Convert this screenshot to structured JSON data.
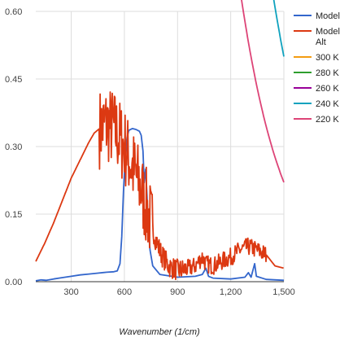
{
  "chart_data": {
    "type": "line",
    "title": "",
    "xlabel": "Wavenumber (1/cm)",
    "ylabel": "",
    "xlim": [
      100,
      1500
    ],
    "ylim": [
      0,
      0.6
    ],
    "x_ticks": [
      300,
      600,
      900,
      1200,
      1500
    ],
    "x_tick_labels": [
      "300",
      "600",
      "900",
      "1,200",
      "1,500"
    ],
    "y_ticks": [
      0,
      0.15,
      0.3,
      0.45,
      0.6
    ],
    "y_tick_labels": [
      "0.00",
      "0.15",
      "0.30",
      "0.45",
      "0.60"
    ],
    "grid": true,
    "legend_position": "right",
    "series": [
      {
        "name": "Model",
        "color": "#3366cc",
        "points": [
          [
            100,
            0.002
          ],
          [
            130,
            0.004
          ],
          [
            160,
            0.003
          ],
          [
            200,
            0.006
          ],
          [
            250,
            0.009
          ],
          [
            300,
            0.012
          ],
          [
            350,
            0.015
          ],
          [
            400,
            0.017
          ],
          [
            450,
            0.019
          ],
          [
            500,
            0.021
          ],
          [
            540,
            0.022
          ],
          [
            560,
            0.024
          ],
          [
            575,
            0.04
          ],
          [
            585,
            0.1
          ],
          [
            595,
            0.2
          ],
          [
            605,
            0.28
          ],
          [
            615,
            0.32
          ],
          [
            625,
            0.336
          ],
          [
            645,
            0.34
          ],
          [
            665,
            0.338
          ],
          [
            685,
            0.334
          ],
          [
            695,
            0.325
          ],
          [
            705,
            0.29
          ],
          [
            712,
            0.22
          ],
          [
            720,
            0.25
          ],
          [
            728,
            0.19
          ],
          [
            735,
            0.12
          ],
          [
            745,
            0.07
          ],
          [
            760,
            0.035
          ],
          [
            800,
            0.016
          ],
          [
            900,
            0.01
          ],
          [
            1000,
            0.012
          ],
          [
            1040,
            0.016
          ],
          [
            1060,
            0.03
          ],
          [
            1075,
            0.012
          ],
          [
            1100,
            0.008
          ],
          [
            1200,
            0.006
          ],
          [
            1280,
            0.01
          ],
          [
            1300,
            0.02
          ],
          [
            1315,
            0.01
          ],
          [
            1335,
            0.04
          ],
          [
            1345,
            0.012
          ],
          [
            1400,
            0.005
          ],
          [
            1500,
            0.003
          ]
        ]
      },
      {
        "name": "Model\nAlt",
        "color": "#dc3912",
        "noisy_from": 460,
        "noisy_to": 1400,
        "points": [
          [
            100,
            0.045
          ],
          [
            150,
            0.085
          ],
          [
            200,
            0.13
          ],
          [
            250,
            0.18
          ],
          [
            300,
            0.23
          ],
          [
            350,
            0.27
          ],
          [
            400,
            0.31
          ],
          [
            430,
            0.33
          ],
          [
            460,
            0.34
          ],
          [
            500,
            0.35
          ],
          [
            540,
            0.34
          ],
          [
            570,
            0.32
          ],
          [
            600,
            0.3
          ],
          [
            630,
            0.27
          ],
          [
            660,
            0.24
          ],
          [
            690,
            0.21
          ],
          [
            720,
            0.17
          ],
          [
            750,
            0.13
          ],
          [
            780,
            0.09
          ],
          [
            810,
            0.06
          ],
          [
            850,
            0.035
          ],
          [
            900,
            0.025
          ],
          [
            950,
            0.028
          ],
          [
            1000,
            0.035
          ],
          [
            1040,
            0.055
          ],
          [
            1060,
            0.04
          ],
          [
            1100,
            0.035
          ],
          [
            1150,
            0.045
          ],
          [
            1200,
            0.055
          ],
          [
            1250,
            0.07
          ],
          [
            1300,
            0.078
          ],
          [
            1350,
            0.07
          ],
          [
            1400,
            0.06
          ],
          [
            1450,
            0.035
          ],
          [
            1500,
            0.03
          ]
        ]
      },
      {
        "name": "300 K",
        "color": "#f39c12",
        "temperature": 300
      },
      {
        "name": "280 K",
        "color": "#2e9e2e",
        "temperature": 280
      },
      {
        "name": "260 K",
        "color": "#990099",
        "temperature": 260
      },
      {
        "name": "240 K",
        "color": "#0fa2be",
        "temperature": 240
      },
      {
        "name": "220 K",
        "color": "#dd4477",
        "temperature": 220
      }
    ]
  }
}
